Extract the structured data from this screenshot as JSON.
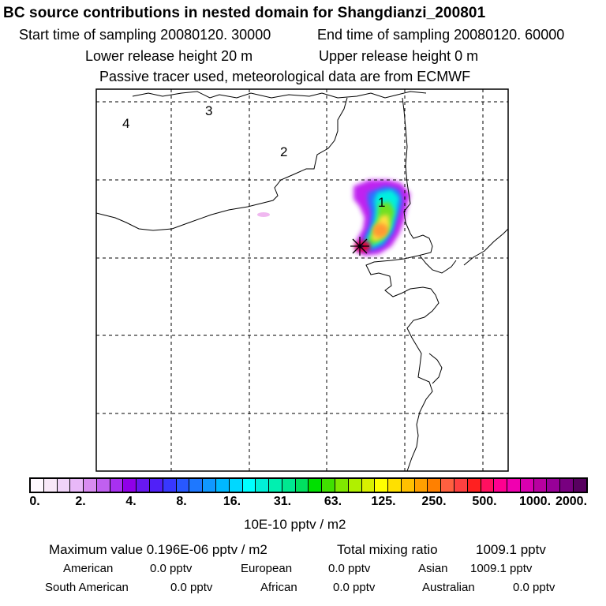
{
  "header": {
    "title": "BC  source contributions in nested domain for Shangdianzi_200801",
    "start_time": "Start time of sampling 20080120. 30000",
    "end_time": "End time of sampling 20080120. 60000",
    "lower_release": "Lower release height   20 m",
    "upper_release": "Upper release height    0 m",
    "tracer_note": "Passive tracer used, meteorological data are from ECMWF"
  },
  "map": {
    "regions": [
      {
        "id": "1",
        "label": "1"
      },
      {
        "id": "2",
        "label": "2"
      },
      {
        "id": "3",
        "label": "3"
      },
      {
        "id": "4",
        "label": "4"
      }
    ],
    "receptor_marker": "receptor-star"
  },
  "colorbar": {
    "colors": [
      "#fff8ff",
      "#f8e8f8",
      "#f0d4f8",
      "#e8b8f8",
      "#d88cf0",
      "#c060f0",
      "#a830f0",
      "#9000e8",
      "#6818f0",
      "#5020f8",
      "#3838ff",
      "#2858ff",
      "#1e78ff",
      "#1098ff",
      "#00b8ff",
      "#00d8ff",
      "#00ffff",
      "#00f0d8",
      "#00f0b0",
      "#00e890",
      "#00e060",
      "#00e000",
      "#40e000",
      "#80e800",
      "#b0f000",
      "#d8f000",
      "#ffff00",
      "#ffe000",
      "#ffc000",
      "#ffa000",
      "#ff8000",
      "#ff6040",
      "#ff4040",
      "#ff2020",
      "#ff1060",
      "#ff0090",
      "#f000b0",
      "#d800b0",
      "#b800a0",
      "#980098",
      "#780080",
      "#580060"
    ],
    "ticks": [
      "0.",
      "2.",
      "4.",
      "8.",
      "16.",
      "31.",
      "63.",
      "125.",
      "250.",
      "500.",
      "1000.",
      "2000."
    ],
    "unit": "10E-10 pptv / m2"
  },
  "stats": {
    "max_value": "Maximum value  0.196E-06 pptv / m2",
    "total_mixing_label": "Total mixing ratio",
    "total_mixing_value": "1009.1 pptv",
    "rows": [
      [
        {
          "name": "American",
          "value": "0.0 pptv"
        },
        {
          "name": "European",
          "value": "0.0 pptv"
        },
        {
          "name": "Asian",
          "value": "1009.1 pptv"
        }
      ],
      [
        {
          "name": "South American",
          "value": "0.0 pptv"
        },
        {
          "name": "African",
          "value": "0.0 pptv"
        },
        {
          "name": "Australian",
          "value": "0.0 pptv"
        }
      ]
    ]
  }
}
